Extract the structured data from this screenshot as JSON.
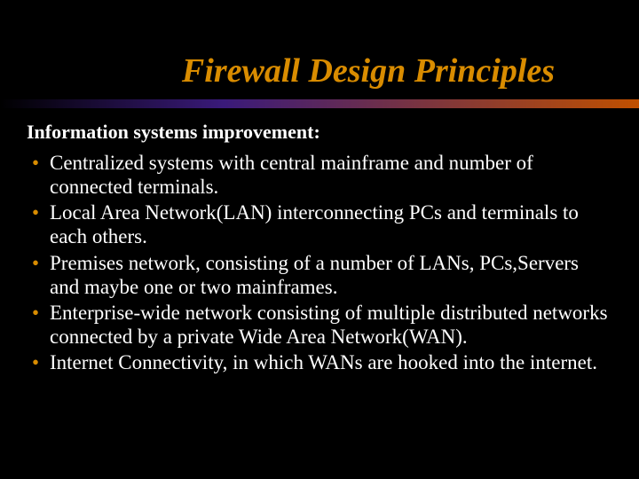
{
  "colors": {
    "background": "#000000",
    "title": "#d98c00",
    "subtitle": "#ffffff",
    "body": "#ffffff",
    "bullet": "#d98c00",
    "gradient_start": "#000000",
    "gradient_mid": "#3a1a7a",
    "gradient_end": "#c05000"
  },
  "typography": {
    "title_fontsize": 38,
    "subtitle_fontsize": 22,
    "body_fontsize": 23,
    "line_height": 1.18
  },
  "title": "Firewall Design Principles",
  "subtitle": "Information systems improvement:",
  "bullets": [
    "Centralized systems with central mainframe and number of connected terminals.",
    "Local Area Network(LAN) interconnecting PCs and terminals to each others.",
    "Premises network, consisting of a number of LANs, PCs,Servers and maybe one or two mainframes.",
    "Enterprise-wide network consisting of multiple distributed networks connected by a private Wide Area Network(WAN).",
    "Internet Connectivity, in which WANs are hooked into the internet."
  ]
}
